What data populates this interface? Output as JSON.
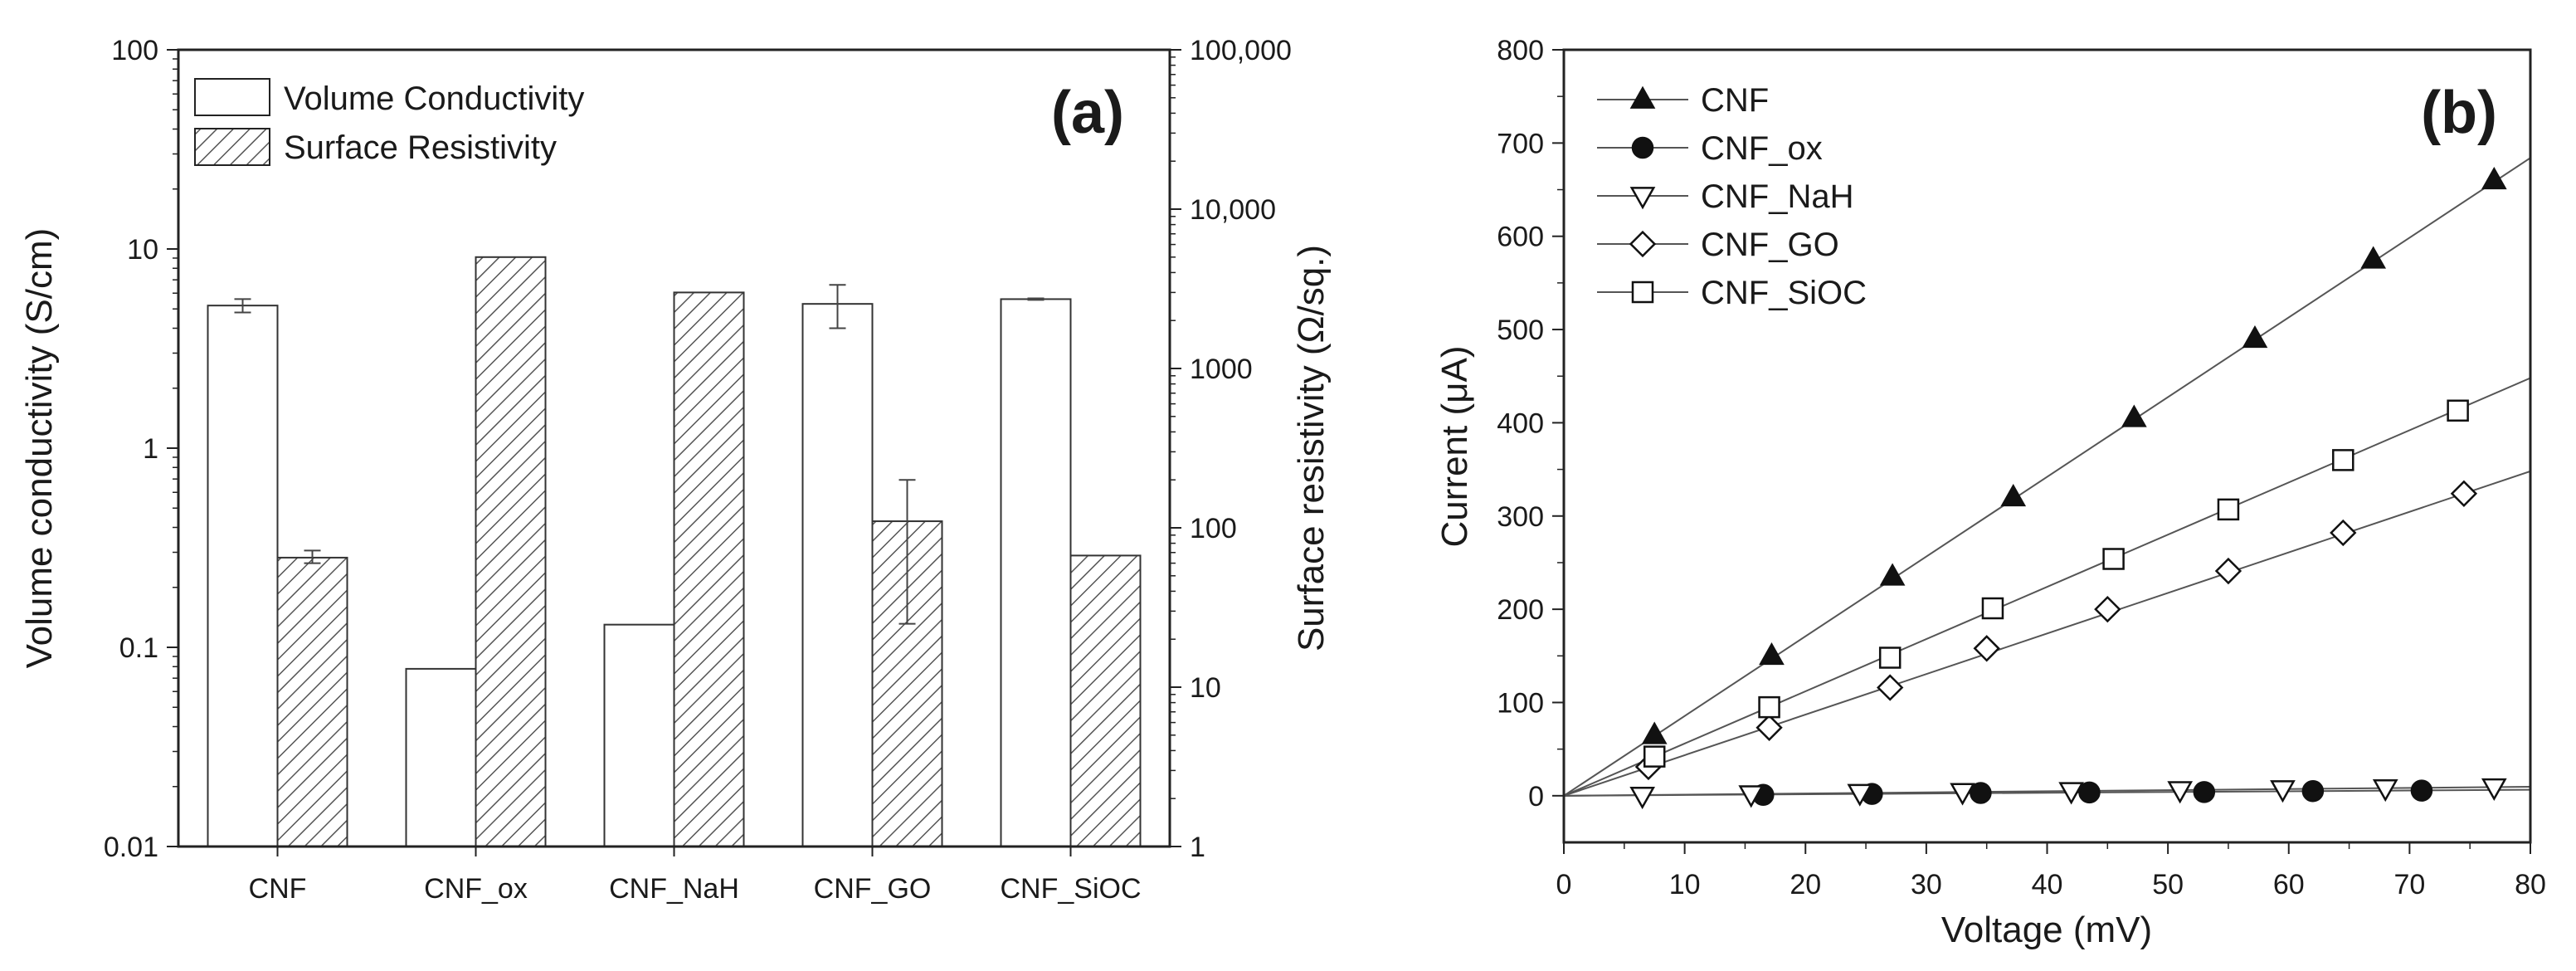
{
  "chart_data": [
    {
      "type": "bar",
      "panel_label": "(a)",
      "categories": [
        "CNF",
        "CNF_ox",
        "CNF_NaH",
        "CNF_GO",
        "CNF_SiOC"
      ],
      "series": [
        {
          "name": "Volume Conductivity",
          "axis": "left",
          "fill": "none",
          "values": [
            5.2,
            0.078,
            0.13,
            5.3,
            5.6
          ],
          "error": [
            [
              4.8,
              5.6
            ],
            null,
            null,
            [
              4.0,
              6.6
            ],
            [
              5.55,
              5.65
            ]
          ]
        },
        {
          "name": "Surface Resistivity",
          "axis": "right",
          "fill": "hatched",
          "values": [
            65,
            5000,
            3000,
            110,
            67
          ],
          "error": [
            [
              60,
              72
            ],
            null,
            null,
            [
              25,
              200
            ],
            null
          ]
        }
      ],
      "ylabel_left": "Volume conductivity (S/cm)",
      "ylabel_right": "Surface resistivity (Ω/sq.)",
      "yscale": "log",
      "ylim_left": [
        0.01,
        100
      ],
      "ylim_right": [
        1,
        100000
      ],
      "yticks_left": [
        "0.01",
        "0.1",
        "1",
        "10",
        "100"
      ],
      "yticks_right": [
        "1",
        "10",
        "100",
        "1000",
        "10,000",
        "100,000"
      ],
      "legend_position": "top-left"
    },
    {
      "type": "line",
      "panel_label": "(b)",
      "xlabel": "Voltage (mV)",
      "ylabel": "Current (μA)",
      "xlim": [
        0,
        80
      ],
      "ylim": [
        -50,
        800
      ],
      "xticks": [
        "0",
        "10",
        "20",
        "30",
        "40",
        "50",
        "60",
        "70",
        "80"
      ],
      "yticks": [
        "0",
        "100",
        "200",
        "300",
        "400",
        "500",
        "600",
        "700",
        "800"
      ],
      "legend_position": "top-left",
      "series": [
        {
          "name": "CNF",
          "marker": "triangle-up-filled",
          "slope": 8.55,
          "x": [
            7.5,
            17.2,
            27.2,
            37.2,
            47.2,
            57.2,
            67.0,
            77.0
          ],
          "y": [
            65,
            150,
            235,
            320,
            405,
            490,
            575,
            660
          ]
        },
        {
          "name": "CNF_ox",
          "marker": "circle-filled",
          "slope": 0.08,
          "x": [
            16.5,
            25.5,
            34.5,
            43.5,
            53.0,
            62.0,
            71.0
          ],
          "y": [
            1,
            2,
            3,
            3.5,
            4,
            5,
            5.5
          ]
        },
        {
          "name": "CNF_NaH",
          "marker": "triangle-down-open",
          "slope": 0.12,
          "x": [
            6.5,
            15.5,
            24.5,
            33.0,
            42.0,
            51.0,
            59.5,
            68.0,
            77.0
          ],
          "y": [
            0,
            1.5,
            3,
            4,
            5,
            6,
            7,
            8,
            9
          ]
        },
        {
          "name": "CNF_GO",
          "marker": "diamond-open",
          "slope": 4.35,
          "x": [
            7.0,
            17.0,
            27.0,
            35.0,
            45.0,
            55.0,
            64.5,
            74.5
          ],
          "y": [
            31,
            73,
            116,
            158,
            200,
            241,
            282,
            324
          ]
        },
        {
          "name": "CNF_SiOC",
          "marker": "square-open",
          "slope": 5.6,
          "x": [
            7.5,
            17.0,
            27.0,
            35.5,
            45.5,
            55.0,
            64.5,
            74.0
          ],
          "y": [
            42,
            95,
            148,
            201,
            254,
            307,
            360,
            413
          ]
        }
      ]
    }
  ]
}
